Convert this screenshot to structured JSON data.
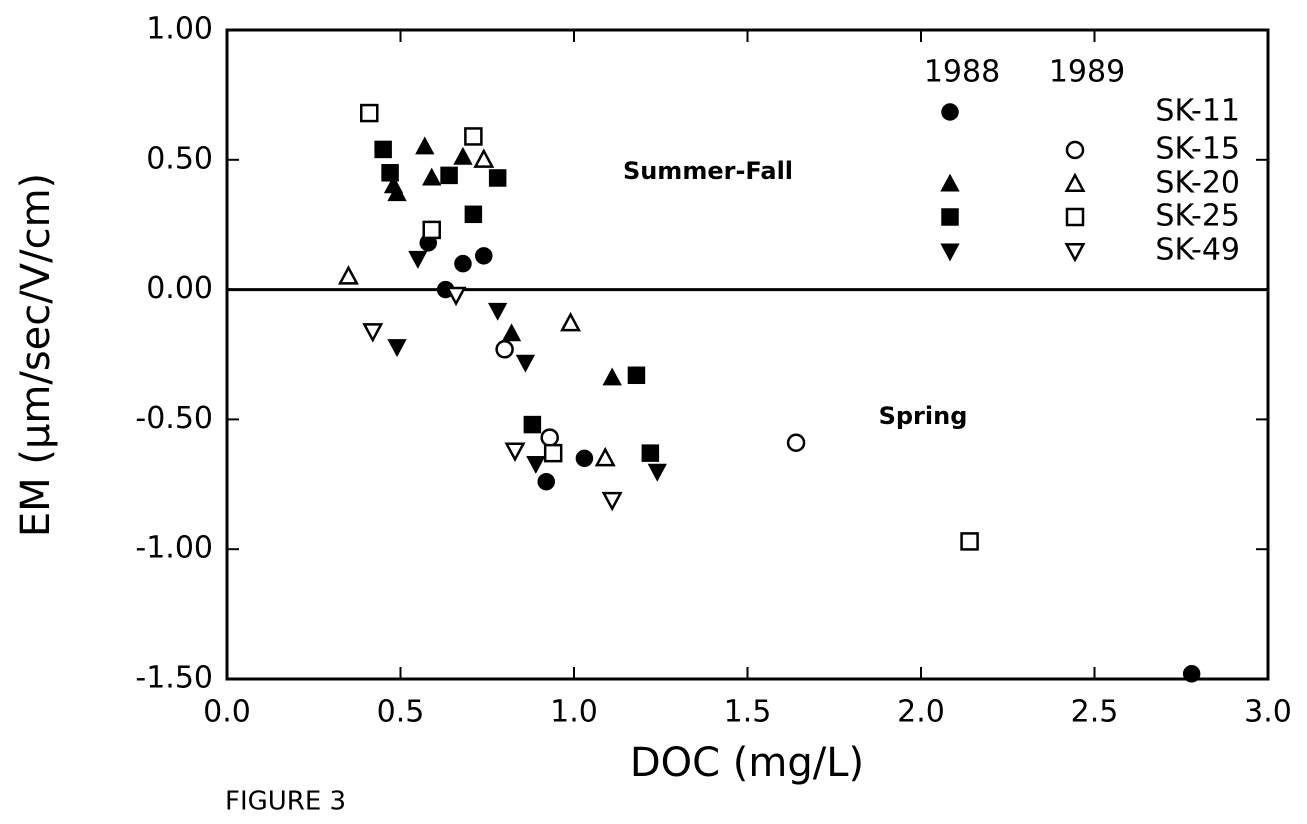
{
  "chart_data": {
    "type": "scatter",
    "x_label": "DOC (mg/L)",
    "y_label": "EM (μm/sec/V/cm)",
    "caption": "FIGURE 3",
    "annotations": [
      "Summer-Fall",
      "Spring"
    ],
    "xlim": [
      0,
      3
    ],
    "ylim": [
      -1.5,
      1
    ],
    "xticks": [
      {
        "value": 0,
        "label": "0.0"
      },
      {
        "value": 0.5,
        "label": "0.5"
      },
      {
        "value": 1,
        "label": "1.0"
      },
      {
        "value": 1.5,
        "label": "1.5"
      },
      {
        "value": 2,
        "label": "2.0"
      },
      {
        "value": 2.5,
        "label": "2.5"
      },
      {
        "value": 3,
        "label": "3.0"
      }
    ],
    "yticks": [
      {
        "value": 1,
        "label": "1.00"
      },
      {
        "value": 0.5,
        "label": "0.50"
      },
      {
        "value": 0,
        "label": "0.00"
      },
      {
        "value": -0.5,
        "label": "-0.50"
      },
      {
        "value": -1,
        "label": "-1.00"
      },
      {
        "value": -1.5,
        "label": "-1.50"
      }
    ],
    "reference_line": 0,
    "color": "#000000",
    "years": [
      "1988",
      "1989"
    ],
    "year_fills": [
      "#000000",
      "none"
    ],
    "legend": "upper right",
    "series": [
      {
        "name": "SK-11",
        "marker": "circle",
        "1988": {
          "x": [
            0.58,
            0.63,
            0.68,
            0.74,
            1.03,
            0.92,
            2.78
          ],
          "values": [
            0.18,
            0.0,
            0.1,
            0.13,
            -0.65,
            -0.74,
            -1.48
          ]
        }
      },
      {
        "name": "SK-15",
        "marker": "circle",
        "1989": {
          "x": [
            0.8,
            0.93,
            1.64
          ],
          "values": [
            -0.23,
            -0.57,
            -0.59
          ]
        }
      },
      {
        "name": "SK-20",
        "marker": "triangle",
        "1988": {
          "x": [
            0.57,
            0.48,
            0.49,
            0.59,
            0.68,
            0.82,
            1.11
          ],
          "values": [
            0.55,
            0.4,
            0.37,
            0.43,
            0.51,
            -0.17,
            -0.34
          ]
        },
        "1989": {
          "x": [
            0.35,
            0.74,
            0.99,
            1.09
          ],
          "values": [
            0.05,
            0.5,
            -0.13,
            -0.65
          ]
        }
      },
      {
        "name": "SK-25",
        "marker": "square",
        "1988": {
          "x": [
            0.45,
            0.47,
            0.64,
            0.71,
            0.78,
            0.88,
            1.18,
            1.22
          ],
          "values": [
            0.54,
            0.45,
            0.44,
            0.29,
            0.43,
            -0.52,
            -0.33,
            -0.63
          ]
        },
        "1989": {
          "x": [
            0.41,
            0.59,
            0.71,
            0.94,
            2.14
          ],
          "values": [
            0.68,
            0.23,
            0.59,
            -0.63,
            -0.97
          ]
        }
      },
      {
        "name": "SK-49",
        "marker": "down-triangle",
        "1988": {
          "x": [
            0.55,
            0.78,
            0.86,
            0.49,
            0.89,
            1.24
          ],
          "values": [
            0.12,
            -0.08,
            -0.28,
            -0.22,
            -0.67,
            -0.7
          ]
        },
        "1989": {
          "x": [
            0.42,
            0.66,
            0.83,
            1.11
          ],
          "values": [
            -0.16,
            -0.02,
            -0.62,
            -0.81
          ]
        }
      }
    ]
  }
}
